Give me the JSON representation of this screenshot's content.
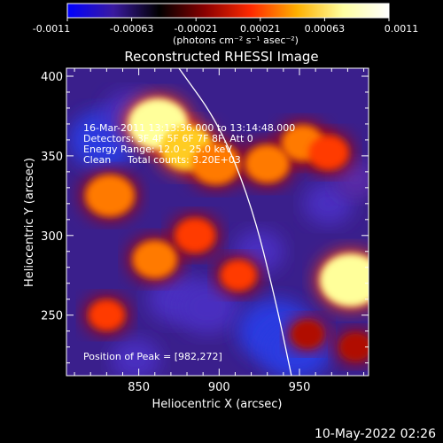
{
  "chart_data": {
    "type": "heatmap",
    "title": "Reconstructed RHESSI Image",
    "xlabel": "Heliocentric X (arcsec)",
    "ylabel": "Heliocentric Y (arcsec)",
    "xlim": [
      805,
      993
    ],
    "ylim": [
      212,
      405
    ],
    "xticks": [
      850,
      900,
      950
    ],
    "yticks": [
      250,
      300,
      350,
      400
    ],
    "colorbar": {
      "range": [
        -0.0011,
        0.0011
      ],
      "ticks": [
        "-0.0011",
        "-0.00063",
        "-0.00021",
        "0.00021",
        "0.00063",
        "0.0011"
      ],
      "unit_label": "(photons cm⁻² s⁻¹ asec⁻²)",
      "colors": [
        "#0000ff",
        "#3a1aa0",
        "#000000",
        "#8a0000",
        "#ff2a00",
        "#ffb000",
        "#ffffa0",
        "#ffffff"
      ]
    },
    "limb_curve": [
      [
        875,
        405
      ],
      [
        900,
        370
      ],
      [
        920,
        320
      ],
      [
        935,
        260
      ],
      [
        945,
        212
      ]
    ],
    "peak_position": [
      982,
      272
    ],
    "hot_regions": [
      {
        "x": 862,
        "y": 370,
        "value": 0.00105
      },
      {
        "x": 880,
        "y": 355,
        "value": 0.0009
      },
      {
        "x": 898,
        "y": 345,
        "value": 0.0008
      },
      {
        "x": 832,
        "y": 325,
        "value": 0.0008
      },
      {
        "x": 860,
        "y": 285,
        "value": 0.0007
      },
      {
        "x": 885,
        "y": 300,
        "value": 0.0006
      },
      {
        "x": 930,
        "y": 345,
        "value": 0.0007
      },
      {
        "x": 952,
        "y": 358,
        "value": 0.00065
      },
      {
        "x": 968,
        "y": 352,
        "value": 0.0006
      },
      {
        "x": 912,
        "y": 275,
        "value": 0.0005
      },
      {
        "x": 982,
        "y": 272,
        "value": 0.0011
      },
      {
        "x": 830,
        "y": 250,
        "value": 0.0005
      },
      {
        "x": 955,
        "y": 238,
        "value": 0.0004
      },
      {
        "x": 985,
        "y": 230,
        "value": 0.0004
      }
    ],
    "cold_regions": [
      {
        "x": 828,
        "y": 360,
        "value": -0.0008
      },
      {
        "x": 845,
        "y": 375,
        "value": -0.0006
      },
      {
        "x": 873,
        "y": 260,
        "value": -0.0006
      },
      {
        "x": 893,
        "y": 255,
        "value": -0.0007
      },
      {
        "x": 935,
        "y": 240,
        "value": -0.0009
      },
      {
        "x": 948,
        "y": 228,
        "value": -0.0008
      },
      {
        "x": 925,
        "y": 290,
        "value": -0.0005
      },
      {
        "x": 968,
        "y": 320,
        "value": -0.0005
      },
      {
        "x": 985,
        "y": 335,
        "value": -0.0004
      },
      {
        "x": 848,
        "y": 222,
        "value": -0.0005
      }
    ]
  },
  "info": {
    "line1": "16-Mar-2011 13:13:36.000 to 13:14:48.000",
    "line2": "Detectors: 3F 4F 5F 6F 7F 8F, Att 0",
    "line3": "Energy Range: 12.0 - 25.0 keV",
    "line4_method": "Clean",
    "line4_counts": "Total counts: 3.20E+03",
    "peak_text": "Position of Peak = [982,272]"
  },
  "footer": {
    "date": "10-May-2022 02:26"
  }
}
